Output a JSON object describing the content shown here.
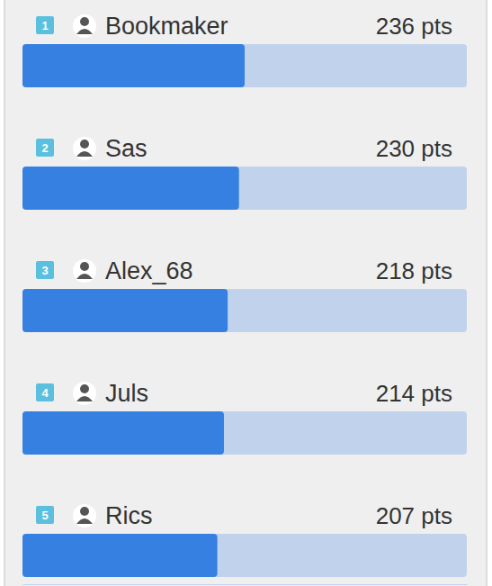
{
  "chart_data": {
    "type": "bar",
    "orientation": "horizontal",
    "categories": [
      "Bookmaker",
      "Sas",
      "Alex_68",
      "Juls",
      "Rics"
    ],
    "ranks": [
      1,
      2,
      3,
      4,
      5
    ],
    "values": [
      236,
      230,
      218,
      214,
      207
    ],
    "value_labels": [
      "236 pts",
      "230 pts",
      "218 pts",
      "214 pts",
      "207 pts"
    ],
    "xlim": [
      0,
      472
    ],
    "xticks": [],
    "color": "#3580e0",
    "data_labels": true,
    "tick_labels": false,
    "grid": false
  }
}
